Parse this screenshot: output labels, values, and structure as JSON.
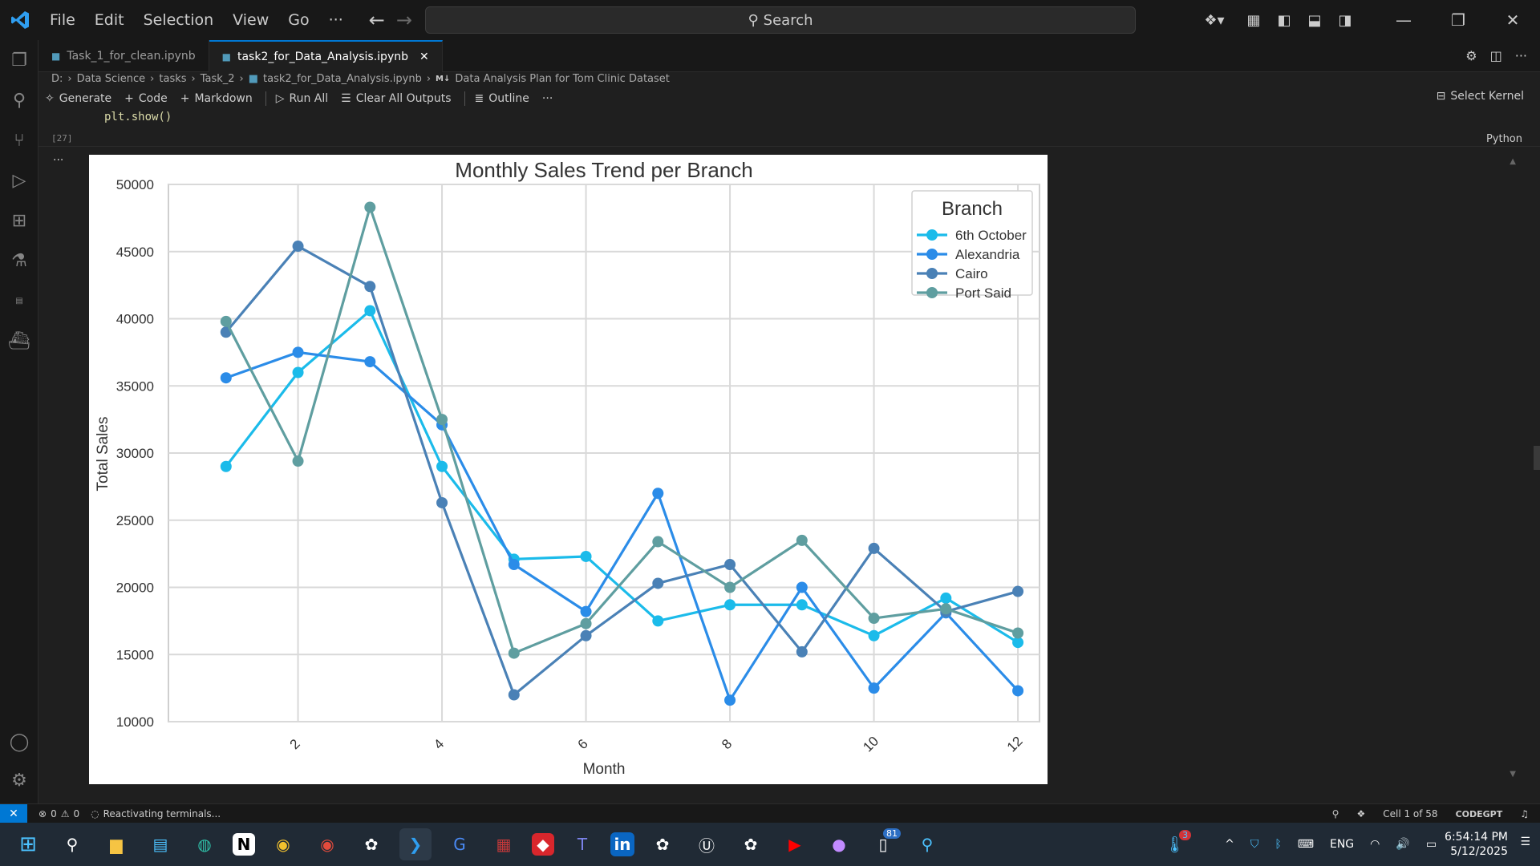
{
  "menu": {
    "items": [
      "File",
      "Edit",
      "Selection",
      "View",
      "Go"
    ],
    "more": "···",
    "search_placeholder": "Search"
  },
  "tabs": [
    {
      "label": "Task_1_for_clean.ipynb",
      "active": false
    },
    {
      "label": "task2_for_Data_Analysis.ipynb",
      "active": true
    }
  ],
  "breadcrumb": [
    "D:",
    "Data Science",
    "tasks",
    "Task_2",
    "task2_for_Data_Analysis.ipynb",
    "Data Analysis Plan for Tom Clinic Dataset"
  ],
  "breadcrumb_md_badge": "M↓",
  "toolbar": {
    "generate": "Generate",
    "code": "Code",
    "markdown": "Markdown",
    "run_all": "Run All",
    "clear_outputs": "Clear All Outputs",
    "outline": "Outline",
    "more": "···",
    "select_kernel": "Select Kernel"
  },
  "cell": {
    "code": "plt.show()",
    "exec_count": "[27]",
    "language": "Python",
    "output_more": "···"
  },
  "chart_data": {
    "type": "line",
    "title": "Monthly Sales Trend per Branch",
    "xlabel": "Month",
    "ylabel": "Total Sales",
    "x": [
      1,
      2,
      3,
      4,
      5,
      6,
      7,
      8,
      9,
      10,
      11,
      12
    ],
    "xticks": [
      "2",
      "4",
      "6",
      "8",
      "10",
      "12"
    ],
    "yticks": [
      "10000",
      "15000",
      "20000",
      "25000",
      "30000",
      "35000",
      "40000",
      "45000",
      "50000"
    ],
    "xlim": [
      0.2,
      12.3
    ],
    "ylim": [
      10000,
      50000
    ],
    "grid": true,
    "legend_title": "Branch",
    "legend_position": "top-right",
    "series": [
      {
        "name": "6th October",
        "color": "#1bbbea",
        "values": [
          29000,
          36000,
          40600,
          29000,
          22100,
          22300,
          17500,
          18700,
          18700,
          16400,
          19200,
          15900
        ]
      },
      {
        "name": "Alexandria",
        "color": "#2b8ce8",
        "values": [
          35600,
          37500,
          36800,
          32100,
          21700,
          18200,
          27000,
          11600,
          20000,
          12500,
          18100,
          12300
        ]
      },
      {
        "name": "Cairo",
        "color": "#4a81b6",
        "values": [
          39000,
          45400,
          42400,
          26300,
          12000,
          16400,
          20300,
          21700,
          15200,
          22900,
          18200,
          19700
        ]
      },
      {
        "name": "Port Said",
        "color": "#5f9ea0",
        "values": [
          39800,
          29400,
          48300,
          32500,
          15100,
          17300,
          23400,
          20000,
          23500,
          17700,
          18400,
          16600
        ]
      }
    ]
  },
  "status": {
    "errors": "0",
    "warnings": "0",
    "message": "Reactivating terminals...",
    "cell_info": "Cell 1 of 58",
    "codegpt": "CODEGPT"
  },
  "taskbar": {
    "tray_lang": "ENG",
    "time": "6:54:14 PM",
    "date": "5/12/2025",
    "badge_notifications": "81",
    "badge_weather": "3"
  }
}
